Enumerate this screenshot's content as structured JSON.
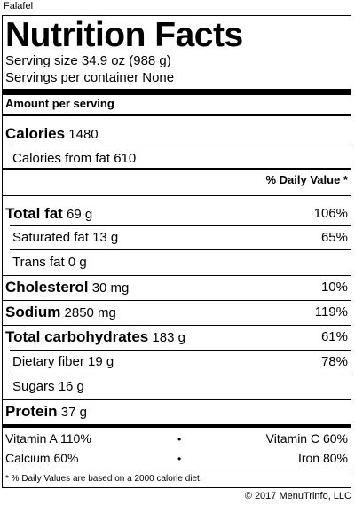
{
  "food_name": "Falafel",
  "title": "Nutrition Facts",
  "serving_size": "Serving size 34.9 oz (988 g)",
  "servings_per_container": "Servings per container None",
  "amount_per_serving": "Amount per serving",
  "calories": {
    "label": "Calories",
    "value": "1480"
  },
  "calories_from_fat": {
    "label": "Calories from fat",
    "value": "610"
  },
  "daily_value_header": "% Daily Value *",
  "nutrients": {
    "total_fat": {
      "label": "Total fat",
      "amount": "69 g",
      "dv": "106%"
    },
    "saturated_fat": {
      "label": "Saturated fat",
      "amount": "13 g",
      "dv": "65%"
    },
    "trans_fat": {
      "label": "Trans fat",
      "amount": "0 g",
      "dv": ""
    },
    "cholesterol": {
      "label": "Cholesterol",
      "amount": "30 mg",
      "dv": "10%"
    },
    "sodium": {
      "label": "Sodium",
      "amount": "2850 mg",
      "dv": "119%"
    },
    "total_carbohydrates": {
      "label": "Total carbohydrates",
      "amount": "183 g",
      "dv": "61%"
    },
    "dietary_fiber": {
      "label": "Dietary fiber",
      "amount": "19 g",
      "dv": "78%"
    },
    "sugars": {
      "label": "Sugars",
      "amount": "16 g",
      "dv": ""
    },
    "protein": {
      "label": "Protein",
      "amount": "37 g",
      "dv": ""
    }
  },
  "vitamins": {
    "vitamin_a": "Vitamin A 110%",
    "vitamin_c": "Vitamin C 60%",
    "calcium": "Calcium 60%",
    "iron": "Iron 80%",
    "bullet": "•"
  },
  "footnote": "* % Daily Values are based on a 2000 calorie diet.",
  "copyright": "© 2017 MenuTrinfo, LLC"
}
